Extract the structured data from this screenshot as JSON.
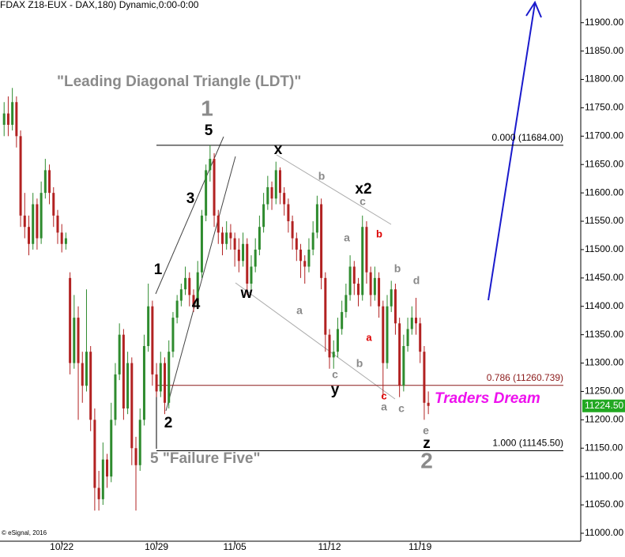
{
  "chart_data": {
    "type": "candlestick",
    "title": "(FDAX Z18-EUX - DAX,180) Dynamic,0:00-0:00",
    "credit": "© eSignal, 2016",
    "up_color": "#2e8b2e",
    "down_color": "#b22222",
    "xlim": [
      -1,
      140
    ],
    "xticks": [
      {
        "value": 14,
        "label": "10/22"
      },
      {
        "value": 37,
        "label": "10/29"
      },
      {
        "value": 56,
        "label": "11/05"
      },
      {
        "value": 79,
        "label": "11/12"
      },
      {
        "value": 101,
        "label": "11/19"
      }
    ],
    "ylim": [
      10986,
      11940
    ],
    "yticks": [
      {
        "value": 11000,
        "label": "11000.00"
      },
      {
        "value": 11050,
        "label": "11050.00"
      },
      {
        "value": 11100,
        "label": "11100.00"
      },
      {
        "value": 11150,
        "label": "11150.00"
      },
      {
        "value": 11200,
        "label": "11200.00"
      },
      {
        "value": 11250,
        "label": "11250.00"
      },
      {
        "value": 11300,
        "label": "11300.00"
      },
      {
        "value": 11350,
        "label": "11350.00"
      },
      {
        "value": 11400,
        "label": "11400.00"
      },
      {
        "value": 11450,
        "label": "11450.00"
      },
      {
        "value": 11500,
        "label": "11500.00"
      },
      {
        "value": 11550,
        "label": "11550.00"
      },
      {
        "value": 11600,
        "label": "11600.00"
      },
      {
        "value": 11650,
        "label": "11650.00"
      },
      {
        "value": 11700,
        "label": "11700.00"
      },
      {
        "value": 11750,
        "label": "11750.00"
      },
      {
        "value": 11800,
        "label": "11800.00"
      },
      {
        "value": 11850,
        "label": "11850.00"
      },
      {
        "value": 11900,
        "label": "11900.00"
      }
    ],
    "levels": [
      {
        "value": 11684,
        "label": "0.000 (11684.00)",
        "color": "#000000"
      },
      {
        "value": 11260.739,
        "label": "0.786 (11260.739)",
        "color": "#8b1a1a"
      },
      {
        "value": 11145.5,
        "label": "1.000 (11145.50)",
        "color": "#000000"
      }
    ],
    "last_price": {
      "value": 11224.5,
      "label": "11224.50",
      "color": "#22a822"
    },
    "annotations": [
      "\"Leading Diagonal Triangle (LDT)\"",
      "1",
      "5",
      "x",
      "x2",
      "3",
      "1",
      "4",
      "w",
      "2",
      "y",
      "z",
      "2",
      "5 \"Failure Five\"",
      "Traders Dream",
      "b",
      "c",
      "a",
      "b",
      "b",
      "d",
      "a",
      "a",
      "c",
      "b",
      "c",
      "a",
      "c",
      "e"
    ],
    "ohlc": [
      [
        11720,
        11760,
        11700,
        11740
      ],
      [
        11740,
        11770,
        11700,
        11720
      ],
      [
        11720,
        11785,
        11710,
        11760
      ],
      [
        11760,
        11770,
        11680,
        11700
      ],
      [
        11700,
        11710,
        11540,
        11560
      ],
      [
        11560,
        11600,
        11520,
        11540
      ],
      [
        11540,
        11560,
        11490,
        11510
      ],
      [
        11510,
        11600,
        11500,
        11580
      ],
      [
        11580,
        11590,
        11500,
        11520
      ],
      [
        11520,
        11620,
        11510,
        11600
      ],
      [
        11600,
        11660,
        11590,
        11640
      ],
      [
        11640,
        11650,
        11580,
        11600
      ],
      [
        11600,
        11610,
        11540,
        11560
      ],
      [
        11560,
        11570,
        11510,
        11530
      ],
      [
        11530,
        11545,
        11495,
        11510
      ],
      [
        11510,
        11530,
        11500,
        11520
      ],
      [
        11450,
        11460,
        11280,
        11300
      ],
      [
        11300,
        11420,
        11290,
        11380
      ],
      [
        11380,
        11400,
        11200,
        11300
      ],
      [
        11300,
        11320,
        11230,
        11260
      ],
      [
        11260,
        11430,
        11250,
        11320
      ],
      [
        11320,
        11330,
        11180,
        11200
      ],
      [
        11200,
        11220,
        11040,
        11080
      ],
      [
        11080,
        11110,
        11040,
        11060
      ],
      [
        11060,
        11160,
        11050,
        11130
      ],
      [
        11130,
        11140,
        11080,
        11100
      ],
      [
        11100,
        11230,
        11090,
        11200
      ],
      [
        11200,
        11300,
        11190,
        11280
      ],
      [
        11280,
        11370,
        11270,
        11350
      ],
      [
        11350,
        11360,
        11200,
        11220
      ],
      [
        11220,
        11320,
        11210,
        11300
      ],
      [
        11300,
        11310,
        11120,
        11150
      ],
      [
        11150,
        11170,
        11040,
        11120
      ],
      [
        11120,
        11220,
        11110,
        11200
      ],
      [
        11200,
        11350,
        11190,
        11330
      ],
      [
        11330,
        11440,
        11320,
        11400
      ],
      [
        11400,
        11410,
        11260,
        11280
      ],
      [
        11280,
        11300,
        11240,
        11250
      ],
      [
        11250,
        11320,
        11240,
        11300
      ],
      [
        11300,
        11310,
        11210,
        11230
      ],
      [
        11230,
        11340,
        11220,
        11320
      ],
      [
        11320,
        11390,
        11310,
        11380
      ],
      [
        11380,
        11420,
        11370,
        11410
      ],
      [
        11410,
        11440,
        11400,
        11430
      ],
      [
        11430,
        11470,
        11420,
        11450
      ],
      [
        11450,
        11460,
        11400,
        11420
      ],
      [
        11420,
        11430,
        11390,
        11400
      ],
      [
        11400,
        11480,
        11395,
        11460
      ],
      [
        11460,
        11570,
        11450,
        11560
      ],
      [
        11560,
        11650,
        11550,
        11640
      ],
      [
        11640,
        11684,
        11620,
        11660
      ],
      [
        11660,
        11670,
        11540,
        11560
      ],
      [
        11560,
        11570,
        11510,
        11530
      ],
      [
        11530,
        11540,
        11490,
        11510
      ],
      [
        11510,
        11550,
        11500,
        11530
      ],
      [
        11530,
        11545,
        11500,
        11520
      ],
      [
        11520,
        11530,
        11470,
        11500
      ],
      [
        11500,
        11520,
        11460,
        11480
      ],
      [
        11480,
        11530,
        11470,
        11510
      ],
      [
        11510,
        11520,
        11420,
        11440
      ],
      [
        11440,
        11490,
        11430,
        11470
      ],
      [
        11470,
        11520,
        11460,
        11500
      ],
      [
        11500,
        11560,
        11490,
        11540
      ],
      [
        11540,
        11600,
        11530,
        11580
      ],
      [
        11580,
        11630,
        11570,
        11610
      ],
      [
        11610,
        11620,
        11570,
        11590
      ],
      [
        11590,
        11655,
        11580,
        11640
      ],
      [
        11640,
        11645,
        11580,
        11600
      ],
      [
        11600,
        11610,
        11560,
        11580
      ],
      [
        11580,
        11590,
        11530,
        11550
      ],
      [
        11550,
        11560,
        11500,
        11520
      ],
      [
        11520,
        11530,
        11480,
        11500
      ],
      [
        11500,
        11510,
        11450,
        11480
      ],
      [
        11480,
        11490,
        11440,
        11470
      ],
      [
        11470,
        11520,
        11460,
        11500
      ],
      [
        11500,
        11550,
        11490,
        11530
      ],
      [
        11530,
        11595,
        11520,
        11580
      ],
      [
        11580,
        11590,
        11430,
        11450
      ],
      [
        11450,
        11460,
        11320,
        11350
      ],
      [
        11350,
        11360,
        11290,
        11310
      ],
      [
        11310,
        11340,
        11290,
        11320
      ],
      [
        11320,
        11380,
        11310,
        11360
      ],
      [
        11360,
        11410,
        11350,
        11390
      ],
      [
        11390,
        11440,
        11380,
        11420
      ],
      [
        11420,
        11490,
        11410,
        11470
      ],
      [
        11470,
        11480,
        11420,
        11440
      ],
      [
        11440,
        11450,
        11400,
        11420
      ],
      [
        11420,
        11560,
        11410,
        11540
      ],
      [
        11540,
        11550,
        11440,
        11460
      ],
      [
        11460,
        11470,
        11400,
        11420
      ],
      [
        11420,
        11470,
        11410,
        11450
      ],
      [
        11450,
        11460,
        11380,
        11400
      ],
      [
        11400,
        11410,
        11240,
        11300
      ],
      [
        11300,
        11420,
        11290,
        11400
      ],
      [
        11400,
        11445,
        11390,
        11430
      ],
      [
        11430,
        11440,
        11350,
        11370
      ],
      [
        11370,
        11380,
        11240,
        11260
      ],
      [
        11260,
        11350,
        11250,
        11330
      ],
      [
        11330,
        11380,
        11320,
        11360
      ],
      [
        11360,
        11400,
        11350,
        11380
      ],
      [
        11380,
        11415,
        11350,
        11370
      ],
      [
        11370,
        11380,
        11300,
        11320
      ],
      [
        11320,
        11330,
        11200,
        11230
      ],
      [
        11230,
        11250,
        11210,
        11224.5
      ]
    ]
  }
}
